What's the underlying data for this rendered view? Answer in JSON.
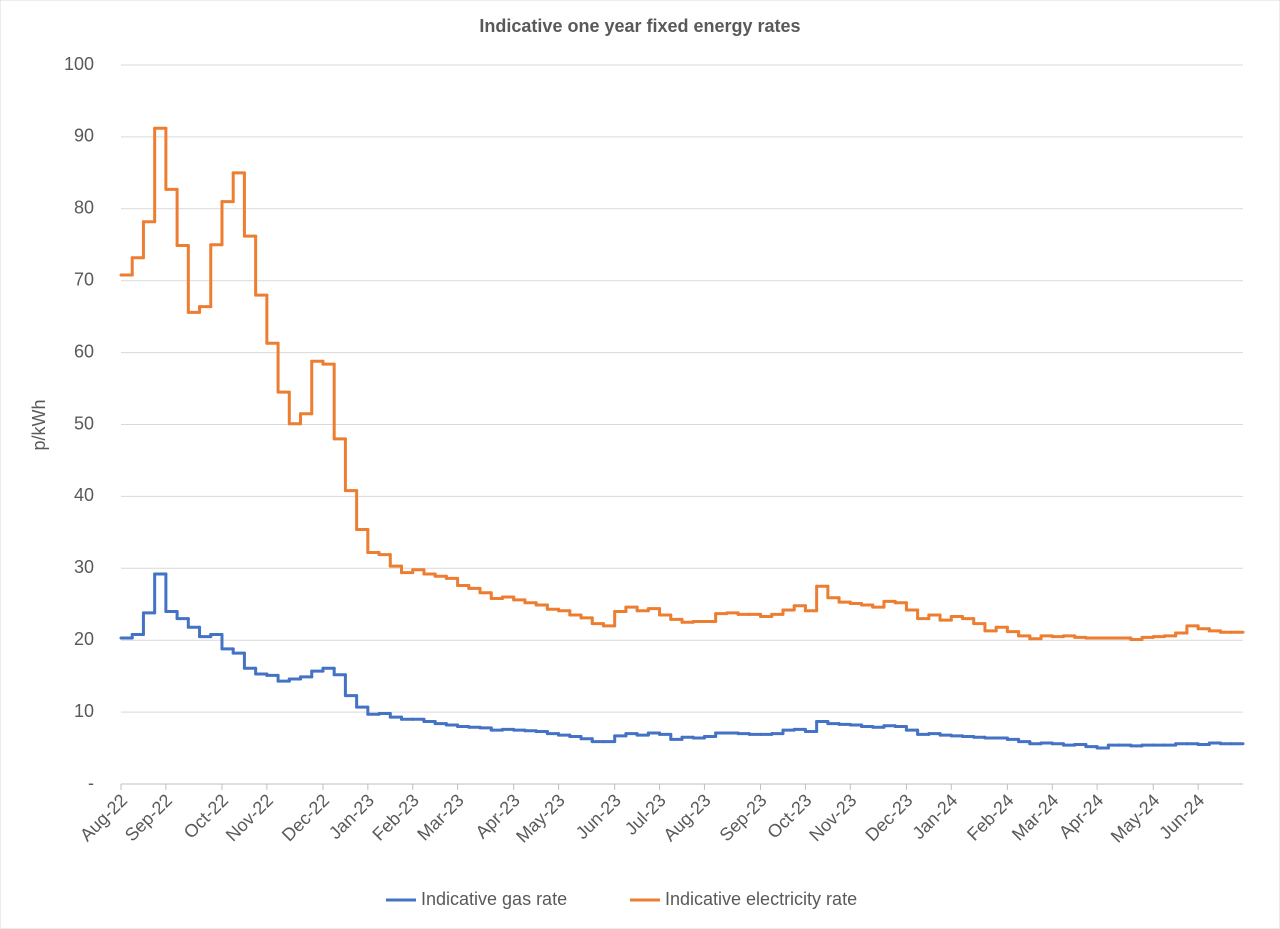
{
  "chart_data": {
    "type": "step-line",
    "title": "Indicative one year fixed energy rates",
    "y_label": "p/kWh",
    "categories": [
      "Aug-22",
      null,
      null,
      null,
      "Sep-22",
      null,
      null,
      null,
      null,
      "Oct-22",
      null,
      null,
      null,
      "Nov-22",
      null,
      null,
      null,
      null,
      "Dec-22",
      null,
      null,
      null,
      "Jan-23",
      null,
      null,
      null,
      "Feb-23",
      null,
      null,
      null,
      "Mar-23",
      null,
      null,
      null,
      null,
      "Apr-23",
      null,
      null,
      null,
      "May-23",
      null,
      null,
      null,
      null,
      "Jun-23",
      null,
      null,
      null,
      "Jul-23",
      null,
      null,
      null,
      "Aug-23",
      null,
      null,
      null,
      null,
      "Sep-23",
      null,
      null,
      null,
      "Oct-23",
      null,
      null,
      null,
      "Nov-23",
      null,
      null,
      null,
      null,
      "Dec-23",
      null,
      null,
      null,
      "Jan-24",
      null,
      null,
      null,
      null,
      "Feb-24",
      null,
      null,
      null,
      "Mar-24",
      null,
      null,
      null,
      "Apr-24",
      null,
      null,
      null,
      null,
      "May-24",
      null,
      null,
      null,
      "Jun-24",
      null,
      null,
      null
    ],
    "series": [
      {
        "name": "Indicative gas rate",
        "color": "#4472c4",
        "values": [
          20.3,
          20.8,
          23.8,
          29.2,
          24.0,
          23.0,
          21.8,
          20.5,
          20.8,
          18.8,
          18.2,
          16.1,
          15.3,
          15.1,
          14.3,
          14.6,
          14.9,
          15.7,
          16.1,
          15.2,
          12.3,
          10.7,
          9.7,
          9.8,
          9.3,
          9.0,
          9.0,
          8.7,
          8.4,
          8.2,
          8.0,
          7.9,
          7.8,
          7.5,
          7.6,
          7.5,
          7.4,
          7.3,
          7.0,
          6.8,
          6.6,
          6.3,
          5.9,
          5.9,
          6.7,
          7.0,
          6.8,
          7.1,
          6.9,
          6.2,
          6.5,
          6.4,
          6.6,
          7.1,
          7.1,
          7.0,
          6.9,
          6.9,
          7.0,
          7.5,
          7.6,
          7.3,
          8.7,
          8.4,
          8.3,
          8.2,
          8.0,
          7.9,
          8.1,
          8.0,
          7.5,
          6.9,
          7.0,
          6.8,
          6.7,
          6.6,
          6.5,
          6.4,
          6.4,
          6.2,
          5.9,
          5.6,
          5.7,
          5.6,
          5.4,
          5.5,
          5.2,
          5.0,
          5.4,
          5.4,
          5.3,
          5.4,
          5.4,
          5.4,
          5.6,
          5.6,
          5.5,
          5.7,
          5.6,
          5.6
        ]
      },
      {
        "name": "Indicative electricity rate",
        "color": "#ed7d31",
        "values": [
          70.8,
          73.2,
          78.2,
          91.2,
          82.7,
          74.9,
          65.6,
          66.4,
          75.0,
          81.0,
          85.0,
          76.2,
          68.0,
          61.3,
          54.5,
          50.1,
          51.5,
          58.8,
          58.4,
          48.0,
          40.8,
          35.4,
          32.2,
          31.9,
          30.3,
          29.4,
          29.8,
          29.2,
          28.9,
          28.6,
          27.6,
          27.2,
          26.6,
          25.8,
          26.0,
          25.6,
          25.2,
          24.9,
          24.3,
          24.1,
          23.5,
          23.1,
          22.3,
          22.0,
          24.0,
          24.6,
          24.1,
          24.4,
          23.5,
          22.9,
          22.5,
          22.6,
          22.6,
          23.7,
          23.8,
          23.6,
          23.6,
          23.3,
          23.6,
          24.2,
          24.8,
          24.1,
          27.5,
          25.9,
          25.3,
          25.1,
          24.9,
          24.6,
          25.4,
          25.2,
          24.2,
          23.0,
          23.5,
          22.8,
          23.3,
          23.0,
          22.3,
          21.3,
          21.8,
          21.2,
          20.6,
          20.2,
          20.6,
          20.5,
          20.6,
          20.4,
          20.3,
          20.3,
          20.3,
          20.3,
          20.1,
          20.4,
          20.5,
          20.6,
          21.0,
          22.0,
          21.6,
          21.3,
          21.1,
          21.1
        ]
      }
    ],
    "ylim": [
      0,
      100
    ],
    "yticks": [
      {
        "value": 0,
        "label": "-"
      },
      10,
      20,
      30,
      40,
      50,
      60,
      70,
      80,
      90,
      100
    ],
    "grid": true,
    "legend": "bottom"
  }
}
